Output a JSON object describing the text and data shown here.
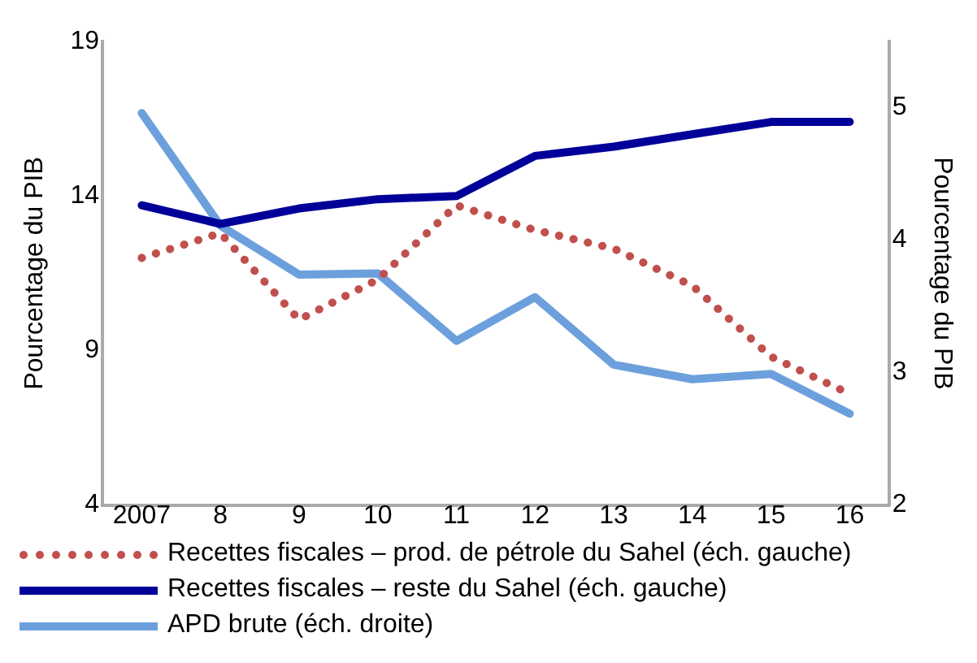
{
  "chart_data": {
    "type": "line",
    "ylabel": "Pourcentage du PIB",
    "y2label": "Pourcentage du PIB",
    "categories": [
      "2007",
      "8",
      "9",
      "10",
      "11",
      "12",
      "13",
      "14",
      "15",
      "16"
    ],
    "series": [
      {
        "name": "Recettes fiscales – prod. de pétrole du Sahel (éch. gauche)",
        "color": "#c0504d",
        "line_style": "dotted",
        "values": [
          12.0,
          12.8,
          10.0,
          11.3,
          13.7,
          12.9,
          12.3,
          11.1,
          8.8,
          7.6
        ]
      },
      {
        "name": "Recettes fiscales – reste du Sahel (éch. gauche)",
        "color": "#000099",
        "line_style": "solid",
        "values": [
          13.7,
          13.1,
          13.6,
          13.9,
          14.0,
          15.3,
          15.6,
          16.0,
          16.4,
          16.4
        ]
      },
      {
        "name": "APD brute (éch. droite)",
        "color": "#6ca0dc",
        "line_style": "solid",
        "axis": "y2",
        "values": [
          4.96,
          4.11,
          3.74,
          3.75,
          3.24,
          3.57,
          3.06,
          2.95,
          2.99,
          2.69
        ]
      }
    ],
    "ylim": [
      4,
      19
    ],
    "yticks": [
      4,
      9,
      14,
      19
    ],
    "y2lim": [
      2,
      5.5
    ],
    "y2ticks": [
      2,
      3,
      4,
      5
    ],
    "grid": false,
    "legend": "bottom",
    "marker": "none"
  }
}
